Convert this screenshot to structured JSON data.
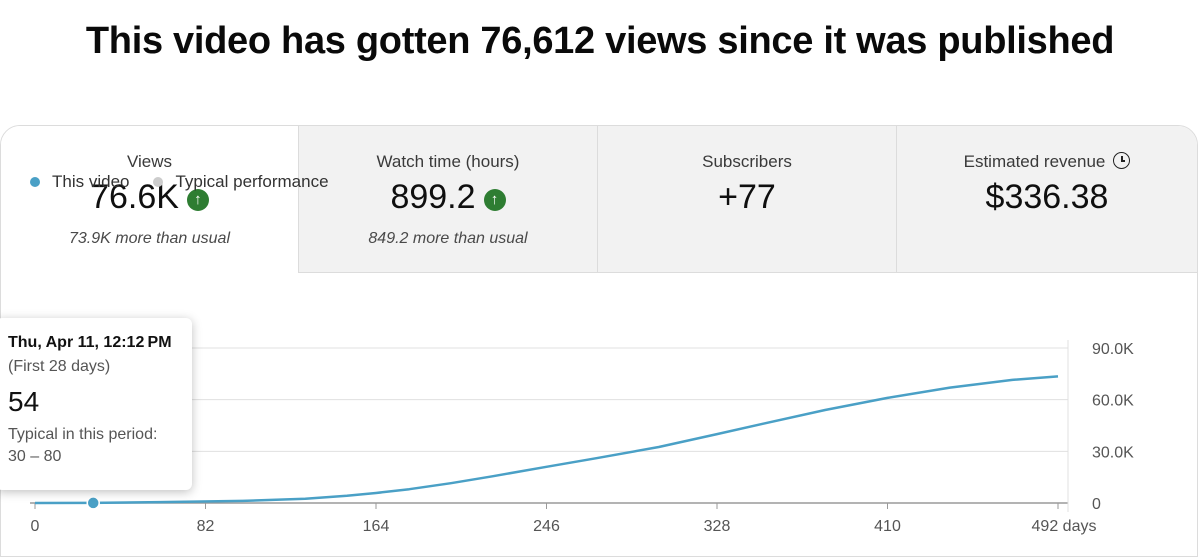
{
  "headline": "This video has gotten 76,612 views since it was published",
  "metrics": [
    {
      "label": "Views",
      "value": "76.6K",
      "trend": "up",
      "sub": "73.9K more than usual"
    },
    {
      "label": "Watch time (hours)",
      "value": "899.2",
      "trend": "up",
      "sub": "849.2 more than usual"
    },
    {
      "label": "Subscribers",
      "value": "+77",
      "trend": "",
      "sub": ""
    },
    {
      "label": "Estimated revenue",
      "value": "$336.38",
      "trend": "",
      "sub": "",
      "icon": "clock-icon"
    }
  ],
  "legend": {
    "this_video": "This video",
    "typical": "Typical performance"
  },
  "colors": {
    "series": "#4aa0c6",
    "typical": "#cccccc",
    "trend_up": "#2e7d32"
  },
  "tooltip": {
    "date": "Thu, Apr 11, 12:12 PM",
    "period": "(First 28 days)",
    "value": "54",
    "typical_label": "Typical in this period:",
    "typical_range": "30 – 80"
  },
  "chart_data": {
    "type": "line",
    "x_unit": "days",
    "x_ticks": [
      0,
      82,
      164,
      246,
      328,
      410,
      492
    ],
    "x_tick_labels": [
      "0",
      "82",
      "164",
      "246",
      "328",
      "410",
      "492 days"
    ],
    "y_ticks": [
      0,
      30000,
      60000,
      90000
    ],
    "y_tick_labels": [
      "0",
      "30.0K",
      "60.0K",
      "90.0K"
    ],
    "ylim": [
      0,
      90000
    ],
    "xlim": [
      0,
      492
    ],
    "series": [
      {
        "name": "This video",
        "x": [
          0,
          28,
          60,
          100,
          130,
          150,
          164,
          180,
          200,
          220,
          246,
          270,
          300,
          328,
          350,
          380,
          410,
          440,
          470,
          492
        ],
        "values": [
          0,
          54,
          500,
          1200,
          2500,
          4200,
          5800,
          8000,
          11500,
          15500,
          21000,
          26000,
          32500,
          40000,
          46000,
          54000,
          61000,
          67000,
          71500,
          73500
        ]
      }
    ],
    "highlight": {
      "x": 28,
      "value": 54
    }
  }
}
